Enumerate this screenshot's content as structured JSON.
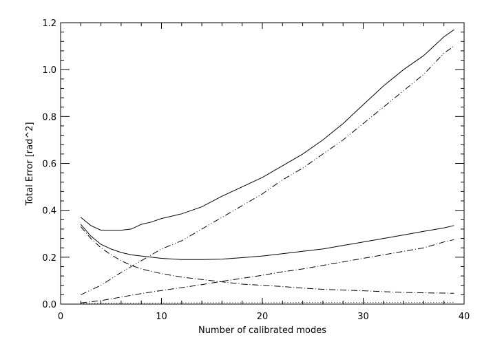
{
  "chart_data": {
    "type": "line",
    "title": "",
    "xlabel": "Number of calibrated modes",
    "ylabel": "Total Error [rad^2]",
    "xlim": [
      0,
      40
    ],
    "ylim": [
      0,
      1.2
    ],
    "xticks": [
      0,
      10,
      20,
      30,
      40
    ],
    "xtick_labels": [
      "0",
      "10",
      "20",
      "30",
      "40"
    ],
    "yticks": [
      0,
      0.2,
      0.4,
      0.6,
      0.8,
      1.0,
      1.2
    ],
    "ytick_labels": [
      "0.0",
      "0.2",
      "0.4",
      "0.6",
      "0.8",
      "1.0",
      "1.2"
    ],
    "grid": false,
    "legend": "none",
    "series": [
      {
        "style": "solid",
        "x": [
          2,
          3,
          4,
          5,
          6,
          7,
          8,
          9,
          10,
          12,
          14,
          16,
          18,
          20,
          22,
          24,
          26,
          28,
          30,
          32,
          34,
          36,
          38,
          39
        ],
        "y": [
          0.37,
          0.335,
          0.315,
          0.315,
          0.315,
          0.32,
          0.34,
          0.35,
          0.365,
          0.385,
          0.415,
          0.46,
          0.5,
          0.54,
          0.59,
          0.64,
          0.7,
          0.77,
          0.85,
          0.93,
          1.0,
          1.06,
          1.14,
          1.17
        ]
      },
      {
        "style": "solid",
        "x": [
          2,
          3,
          4,
          5,
          6,
          7,
          8,
          10,
          12,
          14,
          16,
          18,
          20,
          22,
          24,
          26,
          28,
          30,
          32,
          34,
          36,
          38,
          39
        ],
        "y": [
          0.34,
          0.29,
          0.255,
          0.235,
          0.22,
          0.21,
          0.205,
          0.195,
          0.19,
          0.19,
          0.192,
          0.198,
          0.205,
          0.215,
          0.225,
          0.235,
          0.25,
          0.265,
          0.28,
          0.295,
          0.31,
          0.325,
          0.335
        ]
      },
      {
        "style": "dash-dot-dot",
        "x": [
          2,
          4,
          6,
          8,
          10,
          12,
          14,
          16,
          18,
          20,
          22,
          24,
          26,
          28,
          30,
          32,
          34,
          36,
          38,
          39
        ],
        "y": [
          0.04,
          0.08,
          0.135,
          0.185,
          0.235,
          0.27,
          0.32,
          0.37,
          0.42,
          0.47,
          0.53,
          0.58,
          0.64,
          0.7,
          0.77,
          0.84,
          0.91,
          0.98,
          1.07,
          1.1
        ]
      },
      {
        "style": "dash-dot",
        "x": [
          2,
          3,
          4,
          5,
          6,
          7,
          8,
          10,
          12,
          14,
          16,
          18,
          20,
          22,
          24,
          26,
          28,
          30,
          32,
          34,
          36,
          38,
          39
        ],
        "y": [
          0.33,
          0.28,
          0.24,
          0.21,
          0.185,
          0.165,
          0.15,
          0.13,
          0.115,
          0.105,
          0.095,
          0.085,
          0.08,
          0.075,
          0.068,
          0.063,
          0.06,
          0.057,
          0.053,
          0.05,
          0.048,
          0.047,
          0.046
        ]
      },
      {
        "style": "dash-dot",
        "x": [
          2,
          4,
          6,
          8,
          10,
          12,
          14,
          16,
          18,
          20,
          22,
          24,
          26,
          28,
          30,
          32,
          34,
          36,
          38,
          39
        ],
        "y": [
          0.005,
          0.015,
          0.03,
          0.045,
          0.058,
          0.07,
          0.083,
          0.097,
          0.11,
          0.123,
          0.138,
          0.15,
          0.165,
          0.18,
          0.195,
          0.21,
          0.225,
          0.24,
          0.265,
          0.275
        ]
      },
      {
        "style": "dotted",
        "x": [
          2,
          5,
          10,
          15,
          20,
          25,
          30,
          35,
          39
        ],
        "y": [
          0.003,
          0.004,
          0.005,
          0.006,
          0.006,
          0.007,
          0.007,
          0.007,
          0.007
        ]
      }
    ]
  }
}
